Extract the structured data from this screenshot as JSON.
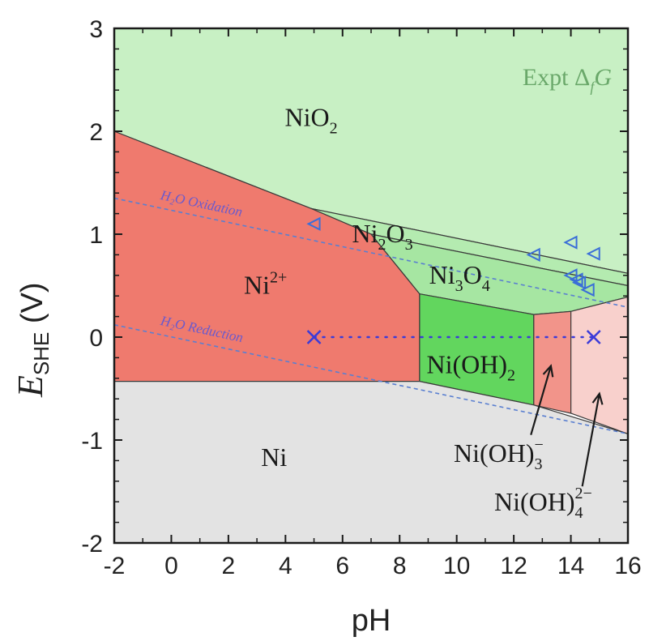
{
  "chart_data": {
    "type": "phase-diagram",
    "title": "",
    "xlabel": "pH",
    "ylabel_main": "E",
    "ylabel_sub": "SHE",
    "ylabel_unit": " (V)",
    "xlim": [
      -2,
      16
    ],
    "ylim": [
      -2,
      3
    ],
    "xticks": [
      -2,
      0,
      2,
      4,
      6,
      8,
      10,
      12,
      14,
      16
    ],
    "yticks": [
      -2,
      -1,
      0,
      1,
      2,
      3
    ],
    "annotation": {
      "text": "Expt Δ",
      "sub": "f",
      "tail": "G"
    },
    "colors": {
      "NiO2": "#c8f0c4",
      "Ni2+": "#ef7a6e",
      "Ni2O3": "#b4ebb0",
      "Ni3O4": "#a6e6a2",
      "Ni(OH)2": "#62d65e",
      "Ni(OH)3-": "#f2948a",
      "Ni(OH)4-2": "#f8d0cc",
      "Ni": "#e3e3e3",
      "water_line": "#5a7fd0",
      "marker": "#3b3bd8"
    },
    "regions": [
      {
        "id": "NiO2",
        "label": "NiO",
        "sub": "2",
        "polygon": [
          [
            -2,
            3
          ],
          [
            16,
            3
          ],
          [
            16,
            0.62
          ],
          [
            4.9,
            1.25
          ],
          [
            -2,
            2.0
          ]
        ]
      },
      {
        "id": "Ni2O3",
        "label": "Ni",
        "sub": "2",
        "mid": "O",
        "sub2": "3",
        "polygon": [
          [
            4.9,
            1.25
          ],
          [
            16,
            0.62
          ],
          [
            16,
            0.5
          ],
          [
            7,
            1.0
          ]
        ]
      },
      {
        "id": "Ni3O4",
        "label": "Ni",
        "sub": "3",
        "mid": "O",
        "sub2": "4",
        "polygon": [
          [
            7,
            1.0
          ],
          [
            16,
            0.5
          ],
          [
            16,
            0.39
          ],
          [
            14,
            0.25
          ],
          [
            12.7,
            0.22
          ],
          [
            8.7,
            0.42
          ]
        ]
      },
      {
        "id": "Ni2+",
        "label": "Ni",
        "sup": "2+",
        "polygon": [
          [
            -2,
            2.0
          ],
          [
            4.9,
            1.25
          ],
          [
            7,
            1.0
          ],
          [
            8.7,
            0.42
          ],
          [
            8.7,
            -0.43
          ],
          [
            -2,
            -0.43
          ]
        ]
      },
      {
        "id": "Ni(OH)2",
        "label": "Ni(OH)",
        "sub": "2",
        "polygon": [
          [
            8.7,
            0.42
          ],
          [
            12.7,
            0.22
          ],
          [
            12.7,
            -0.66
          ],
          [
            8.7,
            -0.43
          ]
        ]
      },
      {
        "id": "Ni(OH)3-",
        "label": "Ni(OH)",
        "sub": "3",
        "sup": "−",
        "polygon": [
          [
            12.7,
            0.22
          ],
          [
            14,
            0.25
          ],
          [
            14,
            -0.74
          ],
          [
            12.7,
            -0.66
          ]
        ]
      },
      {
        "id": "Ni(OH)4-2",
        "label": "Ni(OH)",
        "sub": "4",
        "sup": "2−",
        "polygon": [
          [
            14,
            0.25
          ],
          [
            16,
            0.39
          ],
          [
            16,
            -0.94
          ],
          [
            14,
            -0.74
          ]
        ]
      },
      {
        "id": "Ni",
        "label": "Ni",
        "polygon": [
          [
            -2,
            -0.43
          ],
          [
            8.7,
            -0.43
          ],
          [
            12.7,
            -0.66
          ],
          [
            16,
            -0.94
          ],
          [
            16,
            -2
          ],
          [
            -2,
            -2
          ]
        ]
      }
    ],
    "water_lines": [
      {
        "name": "H₂O Oxidation",
        "points": [
          [
            -2,
            1.35
          ],
          [
            16,
            0.29
          ]
        ]
      },
      {
        "name": "H₂O Reduction",
        "points": [
          [
            -2,
            0.12
          ],
          [
            16,
            -0.94
          ]
        ]
      }
    ],
    "dotted_line": {
      "points": [
        [
          5,
          0
        ],
        [
          14.8,
          0
        ]
      ]
    },
    "x_markers": [
      [
        5,
        0
      ],
      [
        14.8,
        0
      ]
    ],
    "triangle_markers": [
      [
        5,
        1.1
      ],
      [
        12.7,
        0.8
      ],
      [
        14,
        0.92
      ],
      [
        14.8,
        0.81
      ],
      [
        14,
        0.6
      ],
      [
        14.2,
        0.56
      ],
      [
        14.3,
        0.53
      ],
      [
        14.6,
        0.46
      ]
    ]
  }
}
